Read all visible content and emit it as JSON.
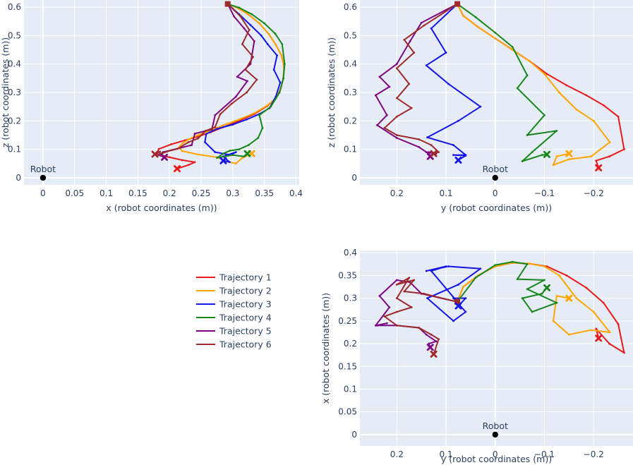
{
  "chart_data": [
    {
      "type": "line",
      "panel": "x-z",
      "xlabel": "x (robot coordinates (m))",
      "ylabel": "z (robot coordinates (m))",
      "xlim": [
        -0.03,
        0.405
      ],
      "ylim": [
        -0.025,
        0.625
      ],
      "xticks": [
        0,
        0.05,
        0.1,
        0.15,
        0.2,
        0.25,
        0.3,
        0.35,
        0.4
      ],
      "xtick_labels": [
        "0",
        "0.05",
        "0.1",
        "0.15",
        "0.2",
        "0.25",
        "0.3",
        "0.35",
        "0.4"
      ],
      "yticks": [
        0,
        0.1,
        0.2,
        0.3,
        0.4,
        0.5,
        0.6
      ],
      "ytick_labels": [
        "0",
        "0.1",
        "0.2",
        "0.3",
        "0.4",
        "0.5",
        "0.6"
      ],
      "robot": {
        "label": "Robot",
        "x": 0,
        "y": 0
      },
      "series": [
        {
          "name": "Trajectory 1",
          "color": "#e8191b",
          "x": [
            0.292,
            0.305,
            0.323,
            0.342,
            0.357,
            0.368,
            0.377,
            0.381,
            0.38,
            0.376,
            0.368,
            0.355,
            0.335,
            0.31,
            0.285,
            0.265,
            0.245,
            0.225,
            0.203,
            0.183,
            0.18,
            0.2,
            0.22,
            0.24,
            0.23,
            0.212
          ],
          "y": [
            0.611,
            0.6,
            0.577,
            0.543,
            0.505,
            0.468,
            0.43,
            0.39,
            0.35,
            0.315,
            0.28,
            0.253,
            0.225,
            0.2,
            0.178,
            0.16,
            0.145,
            0.132,
            0.118,
            0.101,
            0.083,
            0.072,
            0.062,
            0.055,
            0.045,
            0.032
          ]
        },
        {
          "name": "Trajectory 2",
          "color": "#ffa502",
          "x": [
            0.292,
            0.305,
            0.323,
            0.342,
            0.357,
            0.368,
            0.377,
            0.381,
            0.38,
            0.376,
            0.368,
            0.355,
            0.335,
            0.31,
            0.285,
            0.265,
            0.245,
            0.23,
            0.22,
            0.215,
            0.22,
            0.245,
            0.275,
            0.29,
            0.305,
            0.315,
            0.33
          ],
          "y": [
            0.611,
            0.6,
            0.577,
            0.543,
            0.505,
            0.468,
            0.43,
            0.39,
            0.35,
            0.315,
            0.28,
            0.255,
            0.228,
            0.205,
            0.185,
            0.167,
            0.15,
            0.135,
            0.12,
            0.107,
            0.094,
            0.082,
            0.072,
            0.058,
            0.05,
            0.07,
            0.085
          ]
        },
        {
          "name": "Trajectory 3",
          "color": "#1515e6",
          "x": [
            0.292,
            0.31,
            0.328,
            0.345,
            0.355,
            0.37,
            0.365,
            0.375,
            0.368,
            0.358,
            0.343,
            0.322,
            0.3,
            0.275,
            0.258,
            0.256,
            0.272,
            0.297,
            0.305,
            0.285,
            0.295,
            0.285
          ],
          "y": [
            0.611,
            0.575,
            0.537,
            0.5,
            0.47,
            0.43,
            0.38,
            0.335,
            0.285,
            0.245,
            0.225,
            0.205,
            0.187,
            0.172,
            0.154,
            0.125,
            0.09,
            0.08,
            0.09,
            0.075,
            0.055,
            0.06
          ]
        },
        {
          "name": "Trajectory 4",
          "color": "#17861c",
          "x": [
            0.292,
            0.31,
            0.33,
            0.35,
            0.367,
            0.378,
            0.382,
            0.38,
            0.374,
            0.36,
            0.342,
            0.347,
            0.34,
            0.325,
            0.31,
            0.295,
            0.285,
            0.275,
            0.3,
            0.318,
            0.323
          ],
          "y": [
            0.611,
            0.598,
            0.575,
            0.543,
            0.507,
            0.47,
            0.4,
            0.35,
            0.3,
            0.25,
            0.22,
            0.175,
            0.14,
            0.115,
            0.1,
            0.095,
            0.085,
            0.07,
            0.08,
            0.075,
            0.085
          ]
        },
        {
          "name": "Trajectory 5",
          "color": "#7d0782",
          "x": [
            0.292,
            0.302,
            0.318,
            0.334,
            0.328,
            0.307,
            0.323,
            0.305,
            0.272,
            0.267,
            0.24,
            0.235,
            0.19,
            0.183,
            0.192
          ],
          "y": [
            0.611,
            0.567,
            0.525,
            0.48,
            0.4,
            0.355,
            0.34,
            0.285,
            0.22,
            0.17,
            0.155,
            0.115,
            0.09,
            0.08,
            0.072
          ]
        },
        {
          "name": "Trajectory 6",
          "color": "#9e2a2b",
          "x": [
            0.292,
            0.312,
            0.326,
            0.315,
            0.332,
            0.32,
            0.338,
            0.322,
            0.298,
            0.28,
            0.272,
            0.257,
            0.245,
            0.23,
            0.213,
            0.196,
            0.184,
            0.185,
            0.177
          ],
          "y": [
            0.611,
            0.568,
            0.52,
            0.47,
            0.425,
            0.38,
            0.345,
            0.3,
            0.26,
            0.223,
            0.178,
            0.165,
            0.138,
            0.125,
            0.102,
            0.092,
            0.082,
            0.092,
            0.083
          ]
        }
      ]
    },
    {
      "type": "line",
      "panel": "y-z",
      "xlabel": "y (robot coordinates (m))",
      "ylabel": "z (robot coordinates (m))",
      "xlim": [
        0.275,
        -0.28
      ],
      "ylim": [
        -0.025,
        0.625
      ],
      "xticks": [
        0.2,
        0.1,
        0,
        -0.1,
        -0.2
      ],
      "xtick_labels": [
        "0.2",
        "0.1",
        "0",
        "−0.1",
        "−0.2"
      ],
      "yticks": [
        0,
        0.1,
        0.2,
        0.3,
        0.4,
        0.5,
        0.6
      ],
      "ytick_labels": [
        "0",
        "0.1",
        "0.2",
        "0.3",
        "0.4",
        "0.5",
        "0.6"
      ],
      "robot": {
        "label": "Robot",
        "x": 0,
        "y": 0
      },
      "series": [
        {
          "name": "Trajectory 1",
          "color": "#e8191b",
          "x": [
            0.077,
            0.065,
            0.035,
            0.0,
            -0.035,
            -0.07,
            -0.105,
            -0.145,
            -0.185,
            -0.22,
            -0.25,
            -0.262,
            -0.232,
            -0.205,
            -0.21
          ],
          "y": [
            0.611,
            0.57,
            0.53,
            0.49,
            0.45,
            0.41,
            0.365,
            0.325,
            0.29,
            0.255,
            0.215,
            0.1,
            0.075,
            0.06,
            0.035
          ]
        },
        {
          "name": "Trajectory 2",
          "color": "#ffa502",
          "x": [
            0.077,
            0.065,
            0.035,
            0.0,
            -0.035,
            -0.07,
            -0.1,
            -0.13,
            -0.165,
            -0.2,
            -0.233,
            -0.195,
            -0.15,
            -0.118,
            -0.125,
            -0.15
          ],
          "y": [
            0.611,
            0.57,
            0.53,
            0.49,
            0.45,
            0.41,
            0.365,
            0.3,
            0.24,
            0.2,
            0.125,
            0.075,
            0.065,
            0.045,
            0.075,
            0.085
          ]
        },
        {
          "name": "Trajectory 3",
          "color": "#1515e6",
          "x": [
            0.077,
            0.13,
            0.1,
            0.14,
            0.095,
            0.03,
            0.075,
            0.138,
            0.085,
            0.06,
            0.085,
            0.06,
            0.075
          ],
          "y": [
            0.611,
            0.525,
            0.44,
            0.395,
            0.33,
            0.25,
            0.2,
            0.142,
            0.115,
            0.08,
            0.08,
            0.078,
            0.062
          ]
        },
        {
          "name": "Trajectory 4",
          "color": "#17861c",
          "x": [
            0.077,
            0.04,
            0.0,
            -0.035,
            -0.065,
            -0.045,
            -0.1,
            -0.065,
            -0.125,
            -0.075,
            -0.055,
            -0.095,
            -0.105
          ],
          "y": [
            0.611,
            0.565,
            0.51,
            0.46,
            0.36,
            0.315,
            0.22,
            0.15,
            0.165,
            0.09,
            0.058,
            0.08,
            0.082
          ]
        },
        {
          "name": "Trajectory 5",
          "color": "#7d0782",
          "x": [
            0.077,
            0.15,
            0.173,
            0.2,
            0.235,
            0.215,
            0.243,
            0.22,
            0.24,
            0.2,
            0.155,
            0.14,
            0.12,
            0.135,
            0.132
          ],
          "y": [
            0.611,
            0.545,
            0.48,
            0.4,
            0.355,
            0.32,
            0.29,
            0.22,
            0.185,
            0.14,
            0.108,
            0.09,
            0.085,
            0.09,
            0.075
          ]
        },
        {
          "name": "Trajectory 6",
          "color": "#9e2a2b",
          "x": [
            0.077,
            0.145,
            0.185,
            0.165,
            0.2,
            0.175,
            0.2,
            0.17,
            0.2,
            0.225,
            0.2,
            0.155,
            0.13,
            0.115,
            0.125
          ],
          "y": [
            0.611,
            0.535,
            0.485,
            0.44,
            0.385,
            0.33,
            0.28,
            0.245,
            0.215,
            0.175,
            0.15,
            0.135,
            0.115,
            0.09,
            0.085
          ]
        }
      ]
    },
    {
      "type": "line",
      "panel": "y-x",
      "xlabel": "y (robot coordinates (m))",
      "ylabel": "x (robot coordinates (m))",
      "xlim": [
        0.275,
        -0.28
      ],
      "ylim": [
        -0.025,
        0.405
      ],
      "xticks": [
        0.2,
        0.1,
        0,
        -0.1,
        -0.2
      ],
      "xtick_labels": [
        "0.2",
        "0.1",
        "0",
        "−0.1",
        "−0.2"
      ],
      "yticks": [
        0,
        0.05,
        0.1,
        0.15,
        0.2,
        0.25,
        0.3,
        0.35,
        0.4
      ],
      "ytick_labels": [
        "0",
        "0.05",
        "0.1",
        "0.15",
        "0.2",
        "0.25",
        "0.3",
        "0.35",
        "0.4"
      ],
      "robot": {
        "label": "Robot",
        "x": 0,
        "y": 0
      },
      "series": [
        {
          "name": "Trajectory 1",
          "color": "#e8191b",
          "x": [
            0.077,
            0.065,
            0.035,
            0.0,
            -0.035,
            -0.07,
            -0.105,
            -0.145,
            -0.185,
            -0.22,
            -0.25,
            -0.262,
            -0.232,
            -0.205,
            -0.21
          ],
          "y": [
            0.292,
            0.325,
            0.35,
            0.37,
            0.378,
            0.376,
            0.37,
            0.35,
            0.323,
            0.29,
            0.243,
            0.18,
            0.2,
            0.233,
            0.212
          ]
        },
        {
          "name": "Trajectory 2",
          "color": "#ffa502",
          "x": [
            0.077,
            0.065,
            0.035,
            0.0,
            -0.035,
            -0.07,
            -0.1,
            -0.13,
            -0.165,
            -0.2,
            -0.233,
            -0.195,
            -0.15,
            -0.118,
            -0.125,
            -0.15
          ],
          "y": [
            0.292,
            0.325,
            0.35,
            0.37,
            0.378,
            0.376,
            0.37,
            0.35,
            0.3,
            0.27,
            0.225,
            0.23,
            0.22,
            0.25,
            0.305,
            0.3
          ]
        },
        {
          "name": "Trajectory 3",
          "color": "#1515e6",
          "x": [
            0.077,
            0.13,
            0.1,
            0.14,
            0.095,
            0.03,
            0.075,
            0.138,
            0.085,
            0.06,
            0.085,
            0.06,
            0.075
          ],
          "y": [
            0.292,
            0.36,
            0.37,
            0.36,
            0.37,
            0.365,
            0.33,
            0.3,
            0.25,
            0.27,
            0.3,
            0.3,
            0.283
          ]
        },
        {
          "name": "Trajectory 4",
          "color": "#17861c",
          "x": [
            0.077,
            0.04,
            0.0,
            -0.035,
            -0.065,
            -0.045,
            -0.1,
            -0.065,
            -0.125,
            -0.075,
            -0.055,
            -0.095,
            -0.105
          ],
          "y": [
            0.292,
            0.345,
            0.373,
            0.38,
            0.375,
            0.342,
            0.34,
            0.32,
            0.29,
            0.27,
            0.3,
            0.31,
            0.323
          ]
        },
        {
          "name": "Trajectory 5",
          "color": "#7d0782",
          "x": [
            0.077,
            0.15,
            0.173,
            0.2,
            0.235,
            0.215,
            0.243,
            0.22,
            0.24,
            0.2,
            0.155,
            0.14,
            0.12,
            0.135,
            0.132
          ],
          "y": [
            0.292,
            0.31,
            0.335,
            0.34,
            0.305,
            0.28,
            0.24,
            0.245,
            0.24,
            0.24,
            0.235,
            0.22,
            0.205,
            0.2,
            0.192
          ]
        },
        {
          "name": "Trajectory 6",
          "color": "#9e2a2b",
          "x": [
            0.077,
            0.145,
            0.185,
            0.165,
            0.2,
            0.175,
            0.2,
            0.17,
            0.2,
            0.225,
            0.2,
            0.155,
            0.13,
            0.115,
            0.125
          ],
          "y": [
            0.292,
            0.31,
            0.315,
            0.34,
            0.33,
            0.345,
            0.3,
            0.28,
            0.27,
            0.26,
            0.24,
            0.235,
            0.22,
            0.21,
            0.177
          ]
        }
      ]
    }
  ],
  "legend": [
    "Trajectory 1",
    "Trajectory 2",
    "Trajectory 3",
    "Trajectory 4",
    "Trajectory 5",
    "Trajectory 6"
  ],
  "colors": {
    "plot_bg": "#e5ecf6",
    "grid": "#ffffff",
    "text": "#2a3f5f",
    "robot": "#000000"
  }
}
